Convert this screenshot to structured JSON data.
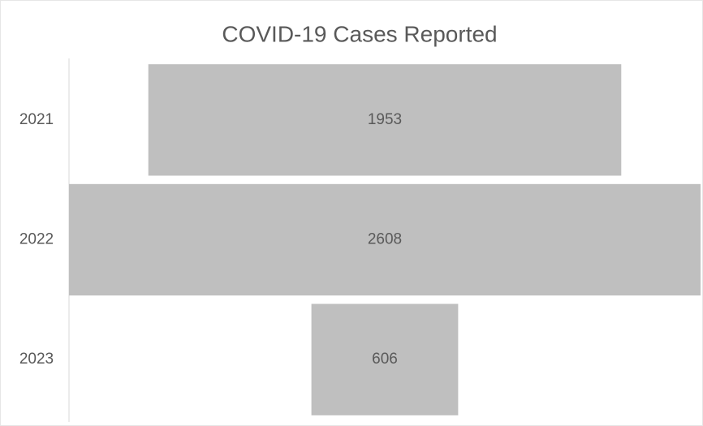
{
  "chart_data": {
    "type": "funnel",
    "title": "COVID-19 Cases Reported",
    "categories": [
      "2021",
      "2022",
      "2023"
    ],
    "values": [
      1953,
      2608,
      606
    ],
    "color": "#bfbfbf"
  }
}
